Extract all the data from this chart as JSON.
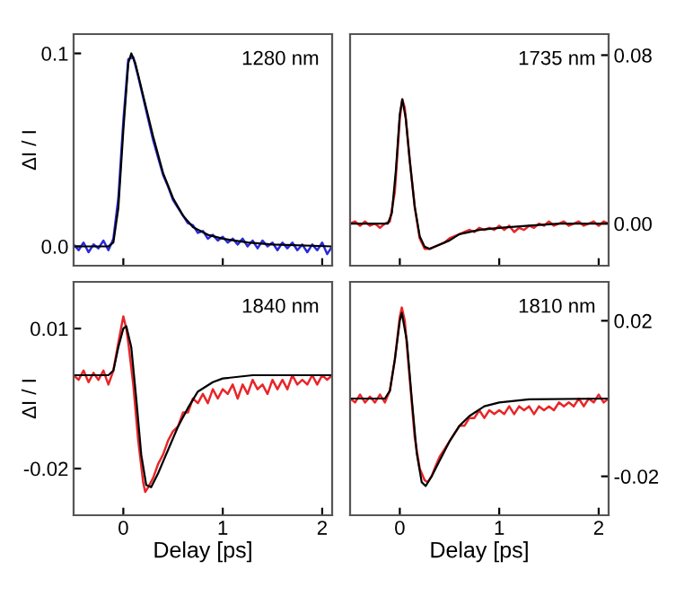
{
  "chart_data": [
    {
      "type": "line",
      "annotations": [
        "1280 nm"
      ],
      "ylabel": "ΔI / I",
      "xlim": [
        -0.5,
        2.1
      ],
      "xticks": [
        0,
        1,
        2
      ],
      "ylim": [
        -0.01,
        0.11
      ],
      "yticks": [
        {
          "value": 0,
          "label": "0.0"
        },
        0.1
      ],
      "tick_labels": "y",
      "grid": false,
      "legend": false,
      "series": [
        {
          "color": "#2a2adb",
          "x": [
            -0.5,
            -0.45,
            -0.4,
            -0.35,
            -0.3,
            -0.25,
            -0.2,
            -0.15,
            -0.1,
            -0.05,
            0,
            0.05,
            0.1,
            0.15,
            0.2,
            0.25,
            0.3,
            0.35,
            0.4,
            0.45,
            0.5,
            0.55,
            0.6,
            0.65,
            0.7,
            0.75,
            0.8,
            0.85,
            0.9,
            0.95,
            1.0,
            1.05,
            1.1,
            1.15,
            1.2,
            1.25,
            1.3,
            1.35,
            1.4,
            1.45,
            1.5,
            1.55,
            1.6,
            1.65,
            1.7,
            1.75,
            1.8,
            1.85,
            1.9,
            1.95,
            2.0,
            2.05,
            2.1
          ],
          "values": [
            0.001,
            -0.002,
            0.002,
            -0.003,
            0.001,
            -0.001,
            0.003,
            -0.002,
            0.004,
            0.025,
            0.065,
            0.097,
            0.098,
            0.088,
            0.077,
            0.066,
            0.055,
            0.046,
            0.037,
            0.031,
            0.024,
            0.02,
            0.016,
            0.012,
            0.011,
            0.007,
            0.008,
            0.004,
            0.006,
            0.003,
            0.005,
            0.002,
            0.004,
            0.001,
            0.004,
            0.0,
            0.003,
            -0.001,
            0.003,
            0.0,
            0.002,
            -0.002,
            0.002,
            -0.001,
            0.002,
            -0.002,
            0.001,
            -0.003,
            0.001,
            -0.002,
            0.002,
            -0.004,
            0.0
          ]
        },
        {
          "color": "#000000",
          "x": [
            -0.5,
            -0.15,
            -0.1,
            -0.05,
            0,
            0.05,
            0.08,
            0.12,
            0.2,
            0.3,
            0.4,
            0.5,
            0.6,
            0.7,
            0.85,
            1.0,
            1.25,
            1.5,
            2.1
          ],
          "values": [
            0,
            0,
            0.002,
            0.02,
            0.06,
            0.095,
            0.1,
            0.095,
            0.078,
            0.057,
            0.038,
            0.025,
            0.016,
            0.01,
            0.006,
            0.004,
            0.002,
            0.001,
            0
          ]
        }
      ]
    },
    {
      "type": "line",
      "annotations": [
        "1735 nm"
      ],
      "xlim": [
        -0.5,
        2.1
      ],
      "xticks": [
        0,
        1,
        2
      ],
      "ylim": [
        -0.02,
        0.09
      ],
      "yticks": [
        {
          "value": 0,
          "label": "0.00"
        },
        0.08
      ],
      "tick_labels": "y",
      "grid": false,
      "legend": false,
      "series": [
        {
          "color": "#e8262a",
          "x": [
            -0.5,
            -0.45,
            -0.4,
            -0.35,
            -0.3,
            -0.25,
            -0.2,
            -0.15,
            -0.1,
            -0.05,
            0,
            0.025,
            0.05,
            0.1,
            0.15,
            0.2,
            0.25,
            0.3,
            0.35,
            0.4,
            0.45,
            0.5,
            0.55,
            0.6,
            0.65,
            0.7,
            0.75,
            0.8,
            0.85,
            0.9,
            0.95,
            1.0,
            1.05,
            1.1,
            1.15,
            1.2,
            1.25,
            1.3,
            1.35,
            1.4,
            1.45,
            1.5,
            1.55,
            1.6,
            1.65,
            1.7,
            1.75,
            1.8,
            1.85,
            1.9,
            1.95,
            2.0,
            2.05,
            2.1
          ],
          "values": [
            0.0,
            0.001,
            -0.001,
            0.001,
            -0.001,
            0.0,
            -0.002,
            0.0,
            0.001,
            0.015,
            0.05,
            0.059,
            0.055,
            0.03,
            0.008,
            -0.007,
            -0.012,
            -0.012,
            -0.011,
            -0.01,
            -0.009,
            -0.007,
            -0.006,
            -0.005,
            -0.004,
            -0.003,
            -0.004,
            -0.002,
            -0.003,
            -0.002,
            -0.003,
            -0.001,
            -0.003,
            -0.001,
            -0.004,
            -0.002,
            -0.003,
            -0.001,
            -0.002,
            0.0,
            -0.001,
            0.001,
            -0.001,
            0.0,
            0.001,
            -0.001,
            0.0,
            0.001,
            -0.001,
            0.0,
            0.001,
            -0.001,
            0.001,
            0.0
          ]
        },
        {
          "color": "#000000",
          "x": [
            -0.5,
            -0.12,
            -0.08,
            -0.04,
            0,
            0.025,
            0.06,
            0.1,
            0.15,
            0.2,
            0.25,
            0.3,
            0.4,
            0.5,
            0.6,
            0.8,
            1.0,
            1.3,
            1.6,
            2.1
          ],
          "values": [
            0,
            0,
            0.005,
            0.025,
            0.052,
            0.059,
            0.05,
            0.03,
            0.008,
            -0.006,
            -0.011,
            -0.012,
            -0.01,
            -0.008,
            -0.005,
            -0.003,
            -0.002,
            -0.001,
            0,
            0
          ]
        }
      ]
    },
    {
      "type": "line",
      "annotations": [
        "1840 nm"
      ],
      "ylabel": "ΔI / I",
      "xlabel": "Delay [ps]",
      "xlim": [
        -0.5,
        2.1
      ],
      "xticks": [
        0,
        1,
        2
      ],
      "ylim": [
        -0.03,
        0.02
      ],
      "yticks": [
        -0.02,
        0.01
      ],
      "grid": false,
      "legend": false,
      "series": [
        {
          "color": "#e8262a",
          "x": [
            -0.5,
            -0.45,
            -0.4,
            -0.35,
            -0.3,
            -0.25,
            -0.2,
            -0.15,
            -0.1,
            -0.05,
            0,
            0.03,
            0.05,
            0.1,
            0.15,
            0.2,
            0.22,
            0.25,
            0.3,
            0.35,
            0.4,
            0.45,
            0.5,
            0.55,
            0.6,
            0.65,
            0.7,
            0.75,
            0.8,
            0.85,
            0.9,
            0.95,
            1.0,
            1.05,
            1.1,
            1.15,
            1.2,
            1.25,
            1.3,
            1.35,
            1.4,
            1.45,
            1.5,
            1.55,
            1.6,
            1.65,
            1.7,
            1.75,
            1.8,
            1.85,
            1.9,
            1.95,
            2.0,
            2.05,
            2.1
          ],
          "values": [
            0.0,
            -0.001,
            0.001,
            -0.0015,
            0.0005,
            -0.001,
            0.001,
            -0.002,
            0.001,
            0.007,
            0.0126,
            0.01,
            0.007,
            -0.002,
            -0.014,
            -0.023,
            -0.025,
            -0.024,
            -0.022,
            -0.019,
            -0.017,
            -0.014,
            -0.012,
            -0.011,
            -0.008,
            -0.008,
            -0.005,
            -0.006,
            -0.004,
            -0.006,
            -0.003,
            -0.005,
            -0.003,
            -0.004,
            -0.002,
            -0.005,
            -0.002,
            -0.004,
            -0.001,
            -0.003,
            -0.002,
            -0.004,
            -0.001,
            -0.003,
            -0.001,
            -0.003,
            0.0,
            -0.002,
            -0.001,
            -0.002,
            0.0,
            -0.002,
            0.0,
            -0.001,
            0.0
          ]
        },
        {
          "color": "#000000",
          "x": [
            -0.5,
            -0.15,
            -0.1,
            -0.05,
            0,
            0.03,
            0.08,
            0.13,
            0.18,
            0.23,
            0.28,
            0.35,
            0.45,
            0.55,
            0.65,
            0.75,
            0.9,
            1.0,
            1.3,
            2.1
          ],
          "values": [
            0,
            0,
            0.001,
            0.006,
            0.01,
            0.0105,
            0.006,
            -0.005,
            -0.017,
            -0.0235,
            -0.024,
            -0.021,
            -0.016,
            -0.011,
            -0.007,
            -0.0035,
            -0.0015,
            -0.0007,
            0,
            0
          ]
        }
      ]
    },
    {
      "type": "line",
      "annotations": [
        "1810 nm"
      ],
      "xlabel": "Delay [ps]",
      "xlim": [
        -0.5,
        2.1
      ],
      "xticks": [
        0,
        1,
        2
      ],
      "ylim": [
        -0.03,
        0.03
      ],
      "yticks": [
        -0.02,
        0.02
      ],
      "grid": false,
      "legend": false,
      "series": [
        {
          "color": "#e8262a",
          "x": [
            -0.5,
            -0.45,
            -0.4,
            -0.35,
            -0.3,
            -0.25,
            -0.2,
            -0.15,
            -0.1,
            -0.05,
            0,
            0.02,
            0.05,
            0.1,
            0.15,
            0.2,
            0.25,
            0.28,
            0.32,
            0.35,
            0.4,
            0.45,
            0.5,
            0.55,
            0.6,
            0.65,
            0.7,
            0.75,
            0.8,
            0.85,
            0.9,
            0.95,
            1.0,
            1.05,
            1.1,
            1.15,
            1.2,
            1.25,
            1.3,
            1.35,
            1.4,
            1.45,
            1.5,
            1.55,
            1.6,
            1.65,
            1.7,
            1.75,
            1.8,
            1.85,
            1.9,
            1.95,
            2.0,
            2.05,
            2.1
          ],
          "values": [
            0.0,
            -0.001,
            0.001,
            -0.001,
            0.0005,
            -0.001,
            0.001,
            -0.001,
            0.002,
            0.01,
            0.021,
            0.0234,
            0.02,
            0.005,
            -0.01,
            -0.018,
            -0.021,
            -0.0215,
            -0.02,
            -0.018,
            -0.015,
            -0.013,
            -0.011,
            -0.009,
            -0.007,
            -0.007,
            -0.005,
            -0.005,
            -0.003,
            -0.005,
            -0.003,
            -0.004,
            -0.003,
            -0.004,
            -0.002,
            -0.004,
            -0.002,
            -0.003,
            -0.002,
            -0.004,
            -0.002,
            -0.003,
            -0.002,
            -0.003,
            -0.001,
            -0.002,
            -0.001,
            -0.002,
            0.0,
            -0.002,
            0.0,
            -0.001,
            0.001,
            -0.001,
            0.0
          ]
        },
        {
          "color": "#000000",
          "x": [
            -0.5,
            -0.15,
            -0.1,
            -0.05,
            0,
            0.02,
            0.07,
            0.12,
            0.17,
            0.22,
            0.26,
            0.32,
            0.4,
            0.5,
            0.6,
            0.7,
            0.85,
            1.0,
            1.3,
            2.1
          ],
          "values": [
            0,
            0,
            0.002,
            0.01,
            0.02,
            0.022,
            0.015,
            0.0,
            -0.014,
            -0.0215,
            -0.0225,
            -0.02,
            -0.016,
            -0.011,
            -0.007,
            -0.0045,
            -0.002,
            -0.001,
            -0.0002,
            0
          ]
        }
      ]
    }
  ]
}
